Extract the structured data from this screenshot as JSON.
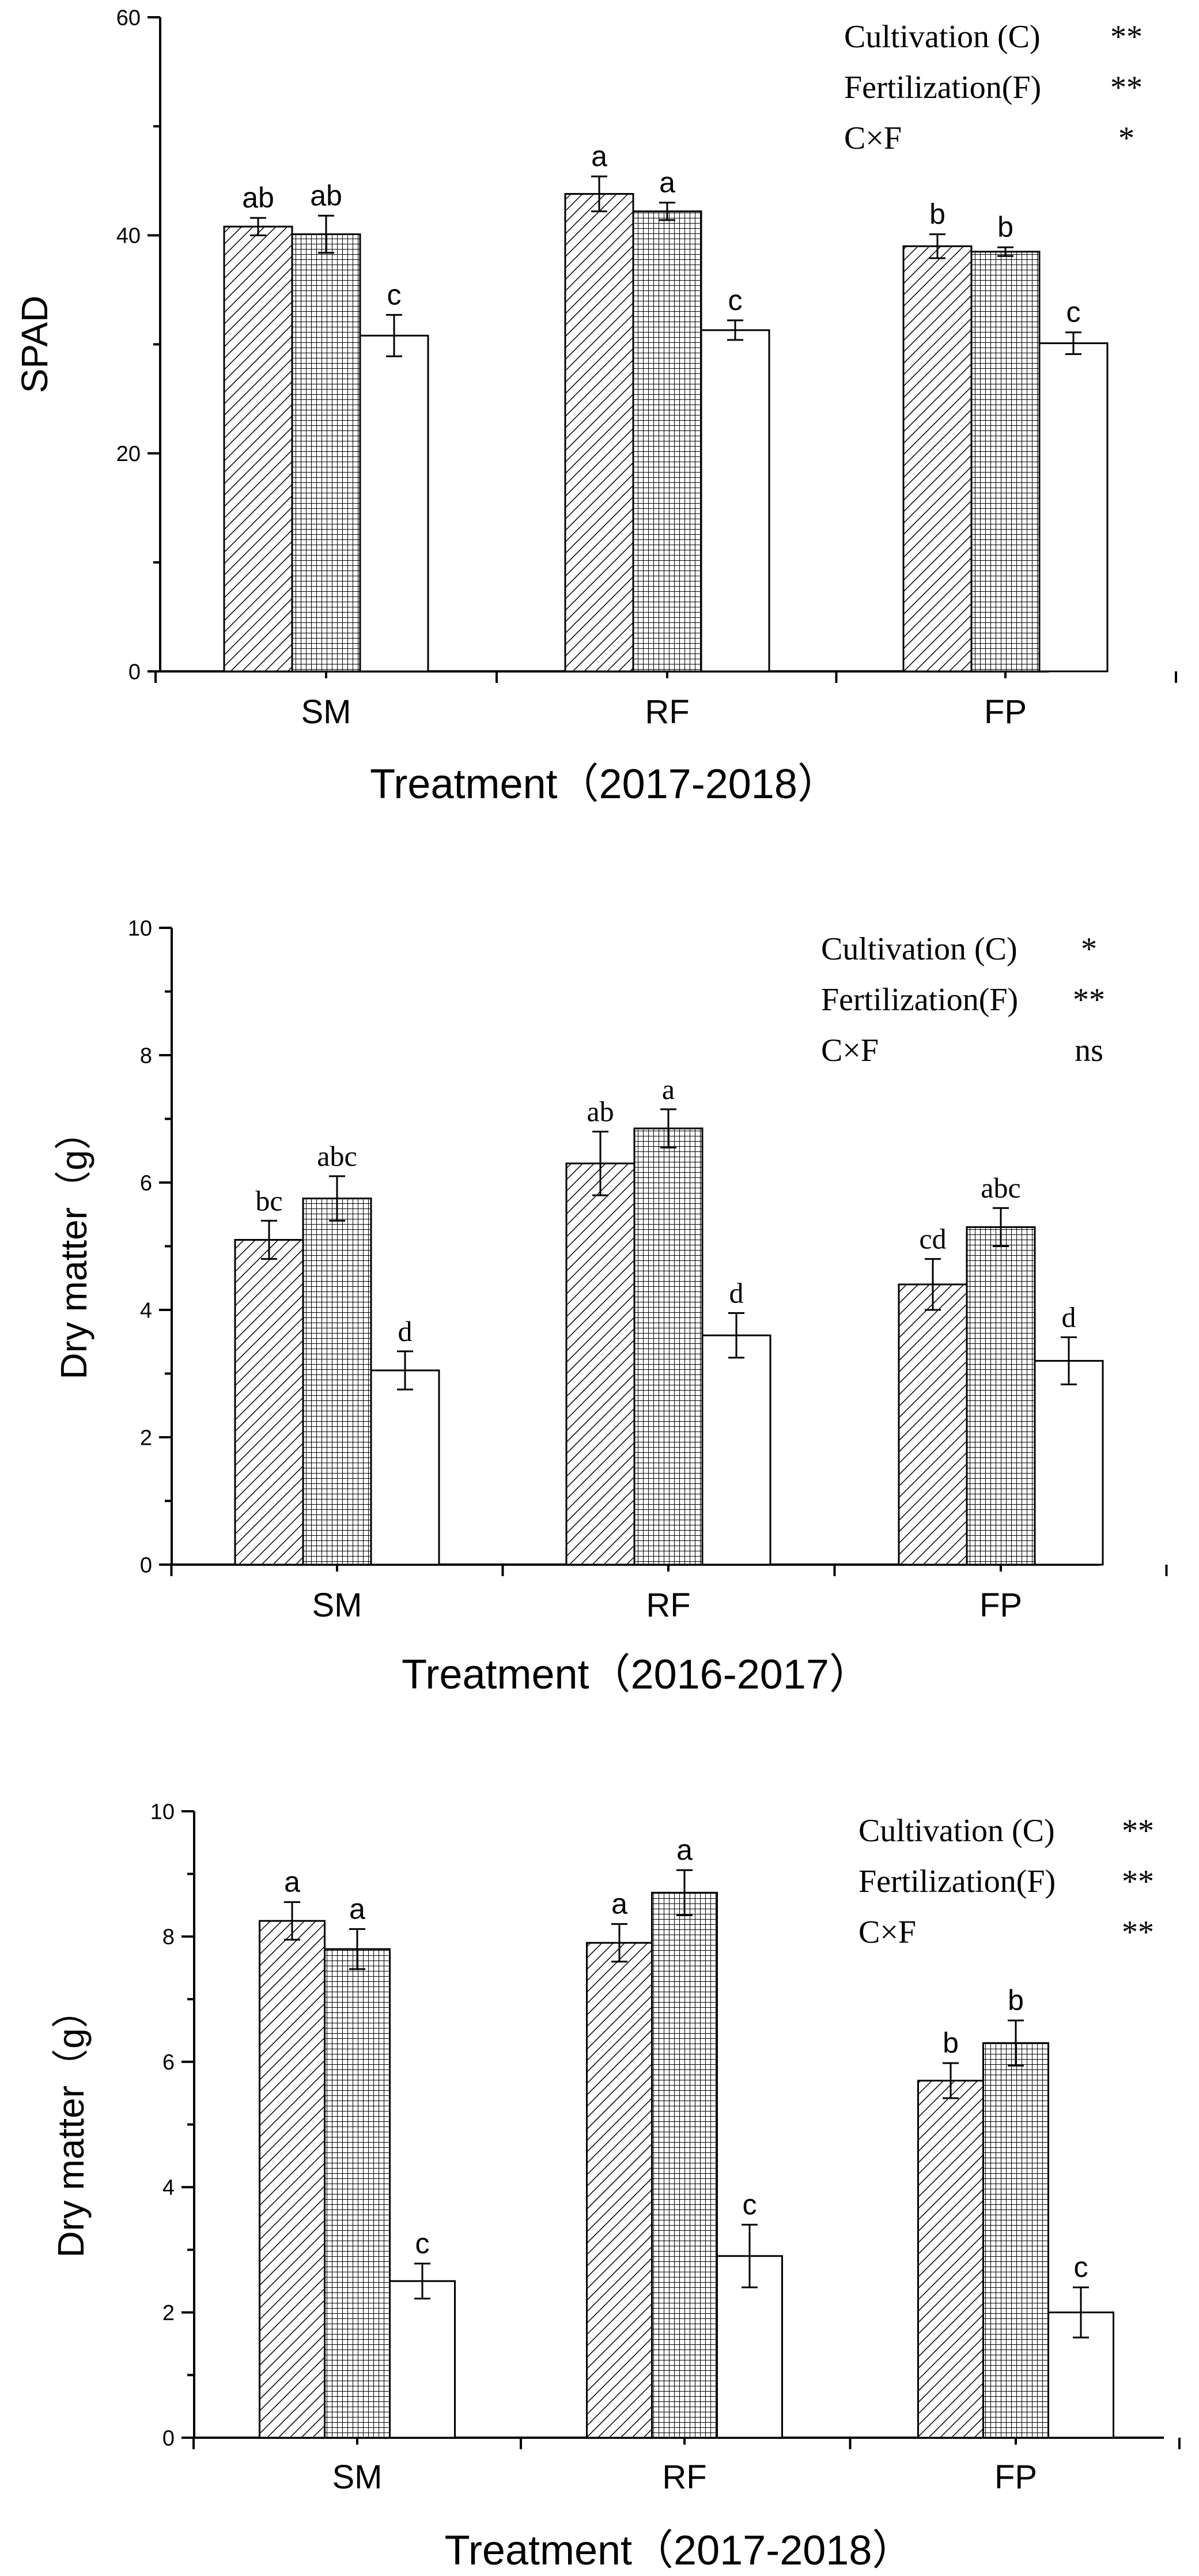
{
  "chart_data": [
    {
      "type": "bar",
      "ylabel": "SPAD",
      "xlabel": "Treatment（2017-2018）",
      "ylim": [
        0,
        60
      ],
      "yticks": [
        0,
        20,
        40,
        60
      ],
      "categories": [
        "SM",
        "RF",
        "FP"
      ],
      "series": [
        {
          "pattern": "diagonal-hatch",
          "values": [
            40.8,
            43.8,
            39.0
          ],
          "errors": [
            0.8,
            1.6,
            1.1
          ],
          "labels": [
            "ab",
            "a",
            "b"
          ]
        },
        {
          "pattern": "grid-hatch",
          "values": [
            40.1,
            42.2,
            38.5
          ],
          "errors": [
            1.7,
            0.8,
            0.4
          ],
          "labels": [
            "ab",
            "a",
            "b"
          ]
        },
        {
          "pattern": "empty",
          "values": [
            30.8,
            31.3,
            30.1
          ],
          "errors": [
            1.9,
            0.9,
            1.0
          ],
          "labels": [
            "c",
            "c",
            "c"
          ]
        }
      ],
      "annotations": [
        {
          "label": "Cultivation (C)",
          "sig": "**"
        },
        {
          "label": "Fertilization(F)",
          "sig": "**"
        },
        {
          "label": "C×F",
          "sig": "*"
        }
      ]
    },
    {
      "type": "bar",
      "ylabel": "Dry matter（g）",
      "xlabel": "Treatment（2016-2017）",
      "ylim": [
        0,
        10
      ],
      "yticks": [
        0,
        2,
        4,
        6,
        8,
        10
      ],
      "categories": [
        "SM",
        "RF",
        "FP"
      ],
      "series": [
        {
          "pattern": "diagonal-hatch",
          "values": [
            5.1,
            6.3,
            4.4
          ],
          "errors": [
            0.3,
            0.5,
            0.4
          ],
          "labels": [
            "bc",
            "ab",
            "cd"
          ]
        },
        {
          "pattern": "grid-hatch",
          "values": [
            5.75,
            6.85,
            5.3
          ],
          "errors": [
            0.35,
            0.3,
            0.3
          ],
          "labels": [
            "abc",
            "a",
            "abc"
          ]
        },
        {
          "pattern": "empty",
          "values": [
            3.05,
            3.6,
            3.2
          ],
          "errors": [
            0.3,
            0.35,
            0.37
          ],
          "labels": [
            "d",
            "d",
            "d"
          ]
        }
      ],
      "annotations": [
        {
          "label": "Cultivation (C)",
          "sig": "*"
        },
        {
          "label": "Fertilization(F)",
          "sig": "**"
        },
        {
          "label": "C×F",
          "sig": "ns"
        }
      ]
    },
    {
      "type": "bar",
      "ylabel": "Dry matter（g）",
      "xlabel": "Treatment（2017-2018）",
      "ylim": [
        0,
        10
      ],
      "yticks": [
        0,
        2,
        4,
        6,
        8,
        10
      ],
      "categories": [
        "SM",
        "RF",
        "FP"
      ],
      "series": [
        {
          "pattern": "diagonal-hatch",
          "values": [
            8.25,
            7.9,
            5.7
          ],
          "errors": [
            0.3,
            0.3,
            0.28
          ],
          "labels": [
            "a",
            "a",
            "b"
          ]
        },
        {
          "pattern": "grid-hatch",
          "values": [
            7.8,
            8.7,
            6.3
          ],
          "errors": [
            0.32,
            0.36,
            0.36
          ],
          "labels": [
            "a",
            "a",
            "b"
          ]
        },
        {
          "pattern": "empty",
          "values": [
            2.5,
            2.9,
            2.0
          ],
          "errors": [
            0.28,
            0.5,
            0.4
          ],
          "labels": [
            "c",
            "c",
            "c"
          ]
        }
      ],
      "annotations": [
        {
          "label": "Cultivation (C)",
          "sig": "**"
        },
        {
          "label": "Fertilization(F)",
          "sig": "**"
        },
        {
          "label": "C×F",
          "sig": "**"
        }
      ]
    }
  ]
}
